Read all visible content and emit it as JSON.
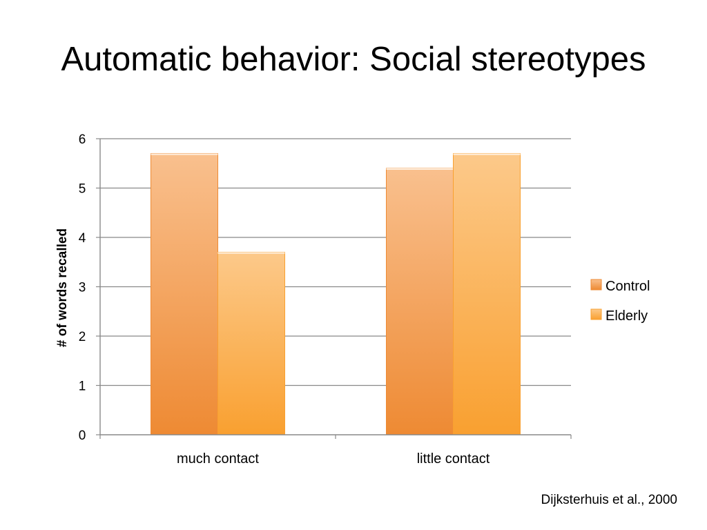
{
  "slide": {
    "title": "Automatic behavior: Social stereotypes",
    "citation": "Dijksterhuis et al., 2000"
  },
  "colors": {
    "control_top": "#f9c08e",
    "control_bottom": "#ee8a33",
    "elderly_top": "#fcc98a",
    "elderly_bottom": "#f9a030",
    "grid": "#888888",
    "axis": "#888888"
  },
  "chart_data": {
    "type": "bar",
    "categories": [
      "much contact",
      "little contact"
    ],
    "series": [
      {
        "name": "Control",
        "values": [
          5.7,
          5.4
        ]
      },
      {
        "name": "Elderly",
        "values": [
          3.7,
          5.7
        ]
      }
    ],
    "title": "",
    "xlabel": "",
    "ylabel": "# of words recalled",
    "ylim": [
      0,
      6
    ],
    "yticks": [
      "0",
      "1",
      "2",
      "3",
      "4",
      "5",
      "6"
    ],
    "grid": true,
    "legend": "right"
  }
}
